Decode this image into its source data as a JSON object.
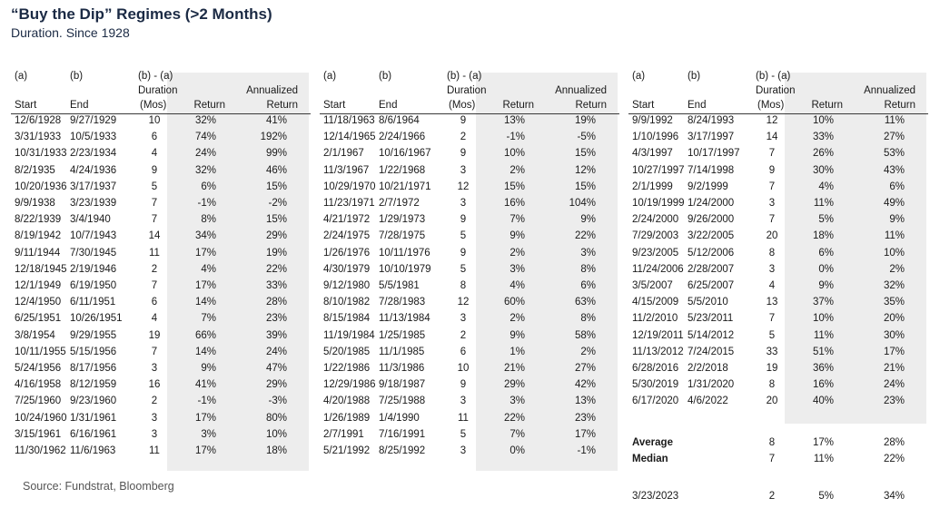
{
  "title": "“Buy the Dip” Regimes (>2 Months)",
  "subtitle": "Duration. Since 1928",
  "source": "Source: Fundstrat, Bloomberg",
  "header": {
    "a": "(a)",
    "b": "(b)",
    "ba": "(b) - (a)",
    "duration": "Duration",
    "annualized": "Annualized",
    "start": "Start",
    "end": "End",
    "mos": "(Mos)",
    "return": "Return",
    "return2": "Return"
  },
  "panels": [
    {
      "rows": [
        [
          "12/6/1928",
          "9/27/1929",
          "10",
          "32%",
          "41%"
        ],
        [
          "3/31/1933",
          "10/5/1933",
          "6",
          "74%",
          "192%"
        ],
        [
          "10/31/1933",
          "2/23/1934",
          "4",
          "24%",
          "99%"
        ],
        [
          "8/2/1935",
          "4/24/1936",
          "9",
          "32%",
          "46%"
        ],
        [
          "10/20/1936",
          "3/17/1937",
          "5",
          "6%",
          "15%"
        ],
        [
          "9/9/1938",
          "3/23/1939",
          "7",
          "-1%",
          "-2%"
        ],
        [
          "8/22/1939",
          "3/4/1940",
          "7",
          "8%",
          "15%"
        ],
        [
          "8/19/1942",
          "10/7/1943",
          "14",
          "34%",
          "29%"
        ],
        [
          "9/11/1944",
          "7/30/1945",
          "11",
          "17%",
          "19%"
        ],
        [
          "12/18/1945",
          "2/19/1946",
          "2",
          "4%",
          "22%"
        ],
        [
          "12/1/1949",
          "6/19/1950",
          "7",
          "17%",
          "33%"
        ],
        [
          "12/4/1950",
          "6/11/1951",
          "6",
          "14%",
          "28%"
        ],
        [
          "6/25/1951",
          "10/26/1951",
          "4",
          "7%",
          "23%"
        ],
        [
          "3/8/1954",
          "9/29/1955",
          "19",
          "66%",
          "39%"
        ],
        [
          "10/11/1955",
          "5/15/1956",
          "7",
          "14%",
          "24%"
        ],
        [
          "5/24/1956",
          "8/17/1956",
          "3",
          "9%",
          "47%"
        ],
        [
          "4/16/1958",
          "8/12/1959",
          "16",
          "41%",
          "29%"
        ],
        [
          "7/25/1960",
          "9/23/1960",
          "2",
          "-1%",
          "-3%"
        ],
        [
          "10/24/1960",
          "1/31/1961",
          "3",
          "17%",
          "80%"
        ],
        [
          "3/15/1961",
          "6/16/1961",
          "3",
          "3%",
          "10%"
        ],
        [
          "11/30/1962",
          "11/6/1963",
          "11",
          "17%",
          "18%"
        ]
      ]
    },
    {
      "rows": [
        [
          "11/18/1963",
          "8/6/1964",
          "9",
          "13%",
          "19%"
        ],
        [
          "12/14/1965",
          "2/24/1966",
          "2",
          "-1%",
          "-5%"
        ],
        [
          "2/1/1967",
          "10/16/1967",
          "9",
          "10%",
          "15%"
        ],
        [
          "11/3/1967",
          "1/22/1968",
          "3",
          "2%",
          "12%"
        ],
        [
          "10/29/1970",
          "10/21/1971",
          "12",
          "15%",
          "15%"
        ],
        [
          "11/23/1971",
          "2/7/1972",
          "3",
          "16%",
          "104%"
        ],
        [
          "4/21/1972",
          "1/29/1973",
          "9",
          "7%",
          "9%"
        ],
        [
          "2/24/1975",
          "7/28/1975",
          "5",
          "9%",
          "22%"
        ],
        [
          "1/26/1976",
          "10/11/1976",
          "9",
          "2%",
          "3%"
        ],
        [
          "4/30/1979",
          "10/10/1979",
          "5",
          "3%",
          "8%"
        ],
        [
          "9/12/1980",
          "5/5/1981",
          "8",
          "4%",
          "6%"
        ],
        [
          "8/10/1982",
          "7/28/1983",
          "12",
          "60%",
          "63%"
        ],
        [
          "8/15/1984",
          "11/13/1984",
          "3",
          "2%",
          "8%"
        ],
        [
          "11/19/1984",
          "1/25/1985",
          "2",
          "9%",
          "58%"
        ],
        [
          "5/20/1985",
          "11/1/1985",
          "6",
          "1%",
          "2%"
        ],
        [
          "1/22/1986",
          "11/3/1986",
          "10",
          "21%",
          "27%"
        ],
        [
          "12/29/1986",
          "9/18/1987",
          "9",
          "29%",
          "42%"
        ],
        [
          "4/20/1988",
          "7/25/1988",
          "3",
          "3%",
          "13%"
        ],
        [
          "1/26/1989",
          "1/4/1990",
          "11",
          "22%",
          "23%"
        ],
        [
          "2/7/1991",
          "7/16/1991",
          "5",
          "7%",
          "17%"
        ],
        [
          "5/21/1992",
          "8/25/1992",
          "3",
          "0%",
          "-1%"
        ]
      ]
    },
    {
      "rows": [
        [
          "9/9/1992",
          "8/24/1993",
          "12",
          "10%",
          "11%"
        ],
        [
          "1/10/1996",
          "3/17/1997",
          "14",
          "33%",
          "27%"
        ],
        [
          "4/3/1997",
          "10/17/1997",
          "7",
          "26%",
          "53%"
        ],
        [
          "10/27/1997",
          "7/14/1998",
          "9",
          "30%",
          "43%"
        ],
        [
          "2/1/1999",
          "9/2/1999",
          "7",
          "4%",
          "6%"
        ],
        [
          "10/19/1999",
          "1/24/2000",
          "3",
          "11%",
          "49%"
        ],
        [
          "2/24/2000",
          "9/26/2000",
          "7",
          "5%",
          "9%"
        ],
        [
          "7/29/2003",
          "3/22/2005",
          "20",
          "18%",
          "11%"
        ],
        [
          "9/23/2005",
          "5/12/2006",
          "8",
          "6%",
          "10%"
        ],
        [
          "11/24/2006",
          "2/28/2007",
          "3",
          "0%",
          "2%"
        ],
        [
          "3/5/2007",
          "6/25/2007",
          "4",
          "9%",
          "32%"
        ],
        [
          "4/15/2009",
          "5/5/2010",
          "13",
          "37%",
          "35%"
        ],
        [
          "11/2/2010",
          "5/23/2011",
          "7",
          "10%",
          "20%"
        ],
        [
          "12/19/2011",
          "5/14/2012",
          "5",
          "11%",
          "30%"
        ],
        [
          "11/13/2012",
          "7/24/2015",
          "33",
          "51%",
          "17%"
        ],
        [
          "6/28/2016",
          "2/2/2018",
          "19",
          "36%",
          "21%"
        ],
        [
          "5/30/2019",
          "1/31/2020",
          "8",
          "16%",
          "24%"
        ],
        [
          "6/17/2020",
          "4/6/2022",
          "20",
          "40%",
          "23%"
        ]
      ],
      "summary": [
        {
          "label": "Average",
          "duration": "8",
          "return": "17%",
          "annualized": "28%"
        },
        {
          "label": "Median",
          "duration": "7",
          "return": "11%",
          "annualized": "22%"
        }
      ],
      "current": {
        "start": "3/23/2023",
        "duration": "2",
        "return": "5%",
        "annualized": "34%"
      }
    }
  ]
}
